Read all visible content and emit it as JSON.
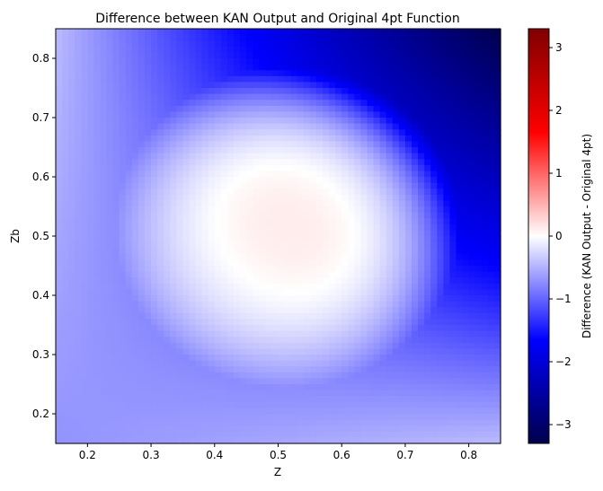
{
  "chart_data": {
    "type": "heatmap",
    "title": "Difference between KAN Output and Original 4pt Function",
    "xlabel": "Z",
    "ylabel": "Zb",
    "xlim": [
      0.15,
      0.85
    ],
    "ylim": [
      0.15,
      0.85
    ],
    "x_ticks": [
      0.2,
      0.3,
      0.4,
      0.5,
      0.6,
      0.7,
      0.8
    ],
    "y_ticks": [
      0.2,
      0.3,
      0.4,
      0.5,
      0.6,
      0.7,
      0.8
    ],
    "colorbar": {
      "label": "Difference (KAN Output - Original 4pt)",
      "range": [
        -3.3,
        3.3
      ],
      "ticks": [
        -3,
        -2,
        -1,
        0,
        1,
        2,
        3
      ],
      "colormap": "seismic",
      "colors": [
        "#00004c",
        "#0000ff",
        "#ffffff",
        "#ff0000",
        "#800000"
      ]
    },
    "field": {
      "peak_center": [
        0.52,
        0.52
      ],
      "peak_value": 0.12,
      "corner_values": {
        "bottom_left": -0.7,
        "bottom_right": -0.45,
        "top_left": -0.45,
        "top_right": -3.3
      }
    }
  }
}
